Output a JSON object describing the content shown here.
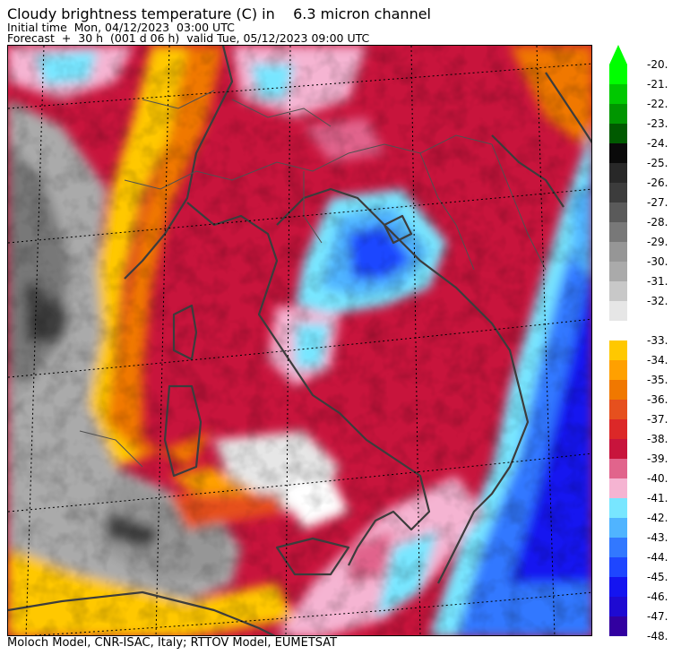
{
  "header": {
    "title": "Cloudy brightness temperature (C) in    6.3 micron channel",
    "initial_time": "Initial time  Mon, 04/12/2023  03:00 UTC",
    "forecast": "Forecast  +  30 h  (001 d 06 h)  valid Tue, 05/12/2023 09:00 UTC"
  },
  "footer": {
    "credit": "Moloch Model, CNR-ISAC, Italy; RTTOV Model, EUMETSAT"
  },
  "colorbar": {
    "upper": [
      {
        "label": "-20.",
        "color": "#00ff00"
      },
      {
        "label": "-21.",
        "color": "#00c800"
      },
      {
        "label": "-22.",
        "color": "#009600"
      },
      {
        "label": "-23.",
        "color": "#005a00"
      },
      {
        "label": "-24.",
        "color": "#0a0a0a"
      },
      {
        "label": "-25.",
        "color": "#282828"
      },
      {
        "label": "-26.",
        "color": "#3c3c3c"
      },
      {
        "label": "-27.",
        "color": "#5a5a5a"
      },
      {
        "label": "-28.",
        "color": "#787878"
      },
      {
        "label": "-29.",
        "color": "#969696"
      },
      {
        "label": "-30.",
        "color": "#aaaaaa"
      },
      {
        "label": "-31.",
        "color": "#c8c8c8"
      },
      {
        "label": "-32.",
        "color": "#e6e6e6"
      }
    ],
    "lower": [
      {
        "label": "-33.",
        "color": "#ffc800"
      },
      {
        "label": "-34.",
        "color": "#ffa000"
      },
      {
        "label": "-35.",
        "color": "#f07800"
      },
      {
        "label": "-36.",
        "color": "#e6501e"
      },
      {
        "label": "-37.",
        "color": "#dc2828"
      },
      {
        "label": "-38.",
        "color": "#c8143c"
      },
      {
        "label": "-39.",
        "color": "#e1648c"
      },
      {
        "label": "-40.",
        "color": "#f5b4d2"
      },
      {
        "label": "-41.",
        "color": "#78e6ff"
      },
      {
        "label": "-42.",
        "color": "#50b4ff"
      },
      {
        "label": "-43.",
        "color": "#3278ff"
      },
      {
        "label": "-44.",
        "color": "#1e46ff"
      },
      {
        "label": "-45.",
        "color": "#1414f0"
      },
      {
        "label": "-46.",
        "color": "#1e0ad2"
      },
      {
        "label": "-47.",
        "color": "#3200a0"
      }
    ],
    "last_label": "-48."
  }
}
